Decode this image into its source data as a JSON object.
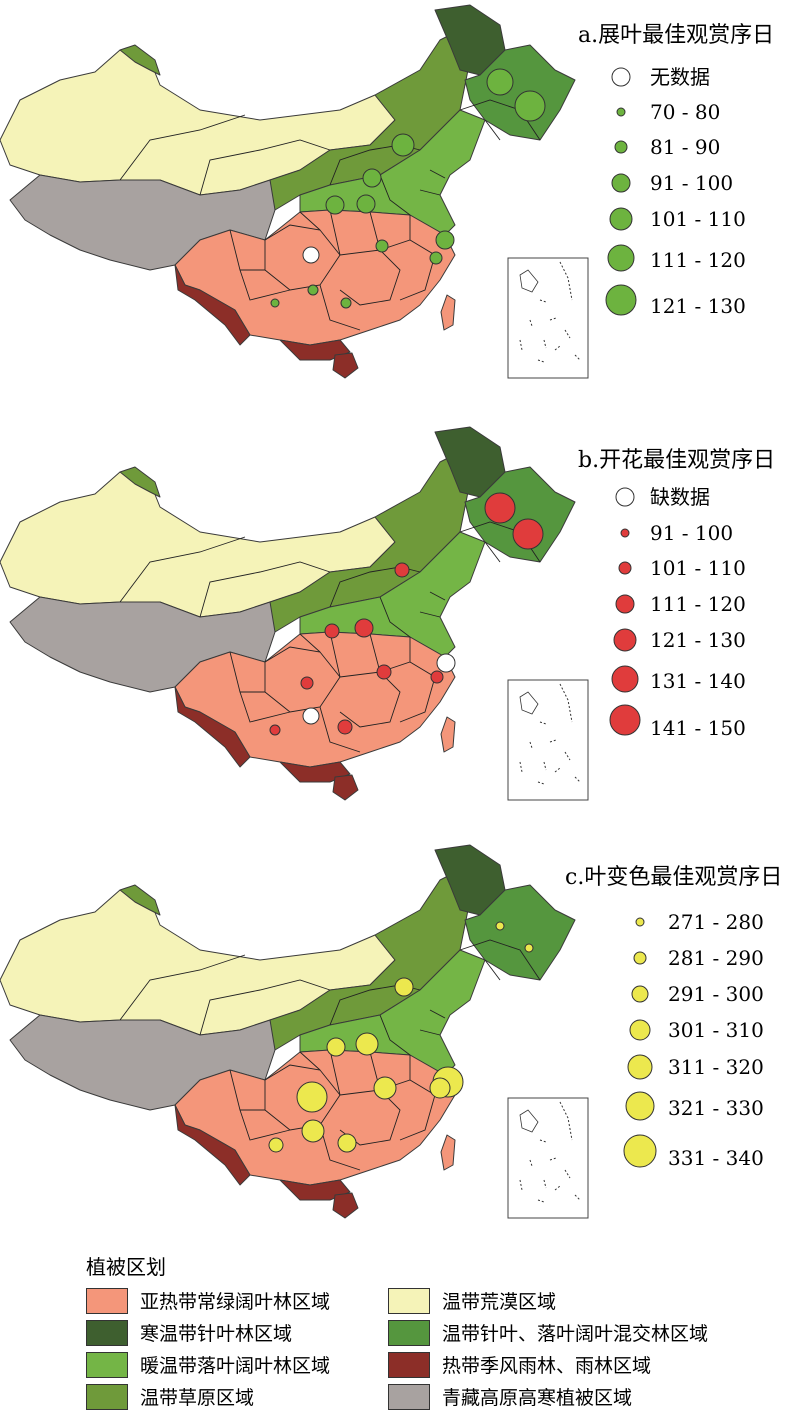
{
  "colors": {
    "subtropical": "#f4967a",
    "cold_conifer": "#3e5f2f",
    "warm_deciduous": "#74b546",
    "steppe": "#6f9a3a",
    "desert": "#f5f3b8",
    "mixed_forest": "#55963e",
    "tropical": "#8c2e28",
    "plateau": "#a8a2a0",
    "green_marker": "#6db33f",
    "red_marker": "#e03c3c",
    "yellow_marker": "#ece84e"
  },
  "panels": [
    {
      "title": "a.展叶最佳观赏序日",
      "marker_color": "#6db33f",
      "legend": [
        "无数据",
        "70 - 80",
        "81 - 90",
        "91 - 100",
        "101 - 110",
        "111 - 120",
        "121 - 130"
      ]
    },
    {
      "title": "b.开花最佳观赏序日",
      "marker_color": "#e03c3c",
      "legend": [
        "缺数据",
        "91 - 100",
        "101 - 110",
        "111 - 120",
        "121 - 130",
        "131 - 140",
        "141 - 150"
      ]
    },
    {
      "title": "c.叶变色最佳观赏序日",
      "marker_color": "#ece84e",
      "legend": [
        "271 - 280",
        "281 - 290",
        "291 - 300",
        "301 - 310",
        "311 - 320",
        "321 - 330",
        "331 - 340"
      ]
    }
  ],
  "vegetation_legend": {
    "title": "植被区划",
    "items": [
      {
        "label": "亚热带常绿阔叶林区域",
        "color": "#f4967a"
      },
      {
        "label": "温带荒漠区域",
        "color": "#f5f3b8"
      },
      {
        "label": "寒温带针叶林区域",
        "color": "#3e5f2f"
      },
      {
        "label": "温带针叶、落叶阔叶混交林区域",
        "color": "#55963e"
      },
      {
        "label": "暖温带落叶阔叶林区域",
        "color": "#74b546"
      },
      {
        "label": "热带季风雨林、雨林区域",
        "color": "#8c2e28"
      },
      {
        "label": "温带草原区域",
        "color": "#6f9a3a"
      },
      {
        "label": "青藏高原高寒植被区域",
        "color": "#a8a2a0"
      }
    ]
  }
}
